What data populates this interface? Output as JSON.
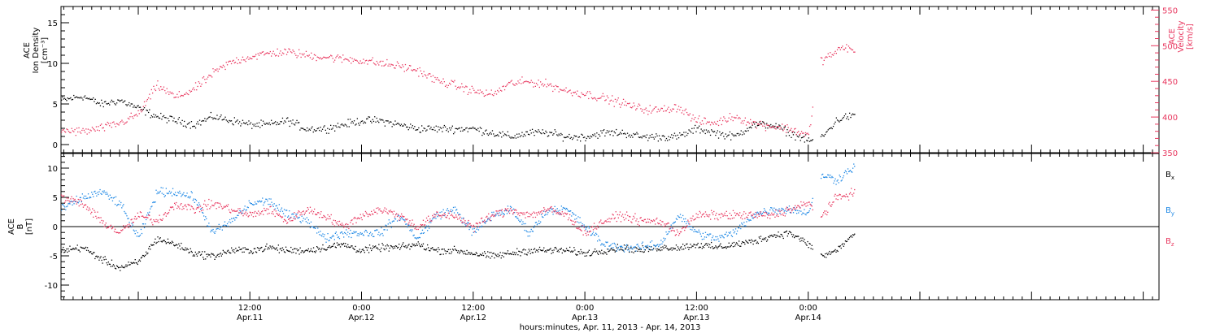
{
  "colors": {
    "axis": "#000000",
    "black_series": "#000000",
    "pink_series": "#e8365e",
    "blue_series": "#1e88e5"
  },
  "x_axis": {
    "title": "hours:minutes, Apr. 11, 2013 - Apr. 14, 2013",
    "range_hours": [
      -8.3,
      109.7
    ],
    "ticks": [
      {
        "hour": 12,
        "line1": "12:00",
        "line2": "Apr.11"
      },
      {
        "hour": 24,
        "line1": "0:00",
        "line2": "Apr.12"
      },
      {
        "hour": 36,
        "line1": "12:00",
        "line2": "Apr.12"
      },
      {
        "hour": 48,
        "line1": "0:00",
        "line2": "Apr.13"
      },
      {
        "hour": 60,
        "line1": "12:00",
        "line2": "Apr.13"
      },
      {
        "hour": 72,
        "line1": "0:00",
        "line2": "Apr.14"
      }
    ],
    "minor_ticks_per_major": 12
  },
  "chart_data": [
    {
      "type": "scatter",
      "panel": "top",
      "left_axis": {
        "label_lines": [
          "ACE",
          "Ion Density",
          "[cm⁻³]"
        ],
        "range": [
          -1,
          17
        ],
        "ticks": [
          0,
          5,
          10,
          15
        ]
      },
      "right_axis": {
        "label_lines": [
          "ACE",
          "Velocity",
          "[km/s]"
        ],
        "range": [
          350,
          555
        ],
        "ticks": [
          350,
          400,
          450,
          500,
          550
        ]
      },
      "series": [
        {
          "color_key": "black_series",
          "axis": "left",
          "data_gap_hours": [
            [
              72.5,
              73.3
            ]
          ],
          "points": [
            [
              -8.3,
              5.5
            ],
            [
              -6,
              6
            ],
            [
              -4,
              5
            ],
            [
              -2,
              5.5
            ],
            [
              0,
              4.5
            ],
            [
              2,
              3.5
            ],
            [
              4,
              3
            ],
            [
              6,
              2.5
            ],
            [
              8,
              3.5
            ],
            [
              10,
              3
            ],
            [
              12,
              2.5
            ],
            [
              14,
              2.5
            ],
            [
              16,
              3
            ],
            [
              18,
              2
            ],
            [
              20,
              2
            ],
            [
              22,
              2.5
            ],
            [
              24,
              3
            ],
            [
              26,
              3
            ],
            [
              28,
              2.5
            ],
            [
              30,
              2
            ],
            [
              32,
              2
            ],
            [
              34,
              2
            ],
            [
              36,
              2
            ],
            [
              38,
              1.5
            ],
            [
              40,
              1
            ],
            [
              42,
              1.5
            ],
            [
              44,
              1.5
            ],
            [
              46,
              1
            ],
            [
              48,
              1
            ],
            [
              50,
              1.5
            ],
            [
              52,
              1.5
            ],
            [
              54,
              1
            ],
            [
              56,
              1
            ],
            [
              58,
              1
            ],
            [
              60,
              2
            ],
            [
              62,
              1.5
            ],
            [
              64,
              1
            ],
            [
              66,
              2.5
            ],
            [
              68,
              2.5
            ],
            [
              70,
              1.5
            ],
            [
              72,
              0.5
            ],
            [
              73.5,
              1
            ],
            [
              75,
              3
            ],
            [
              76,
              3.5
            ],
            [
              77,
              3.5
            ]
          ]
        },
        {
          "color_key": "pink_series",
          "axis": "right",
          "data_gap_hours": [
            [
              72.5,
              73.3
            ]
          ],
          "points": [
            [
              -8.3,
              382
            ],
            [
              -6,
              380
            ],
            [
              -4,
              385
            ],
            [
              -2,
              392
            ],
            [
              0,
              405
            ],
            [
              2,
              445
            ],
            [
              4,
              428
            ],
            [
              6,
              440
            ],
            [
              8,
              462
            ],
            [
              10,
              478
            ],
            [
              12,
              485
            ],
            [
              14,
              490
            ],
            [
              16,
              492
            ],
            [
              18,
              487
            ],
            [
              20,
              485
            ],
            [
              22,
              482
            ],
            [
              24,
              480
            ],
            [
              26,
              476
            ],
            [
              28,
              472
            ],
            [
              30,
              466
            ],
            [
              32,
              452
            ],
            [
              34,
              445
            ],
            [
              36,
              437
            ],
            [
              38,
              432
            ],
            [
              40,
              448
            ],
            [
              42,
              450
            ],
            [
              44,
              446
            ],
            [
              46,
              437
            ],
            [
              48,
              433
            ],
            [
              50,
              427
            ],
            [
              52,
              420
            ],
            [
              54,
              412
            ],
            [
              56,
              410
            ],
            [
              58,
              415
            ],
            [
              60,
              395
            ],
            [
              62,
              392
            ],
            [
              64,
              402
            ],
            [
              66,
              392
            ],
            [
              68,
              388
            ],
            [
              70,
              384
            ],
            [
              72,
              375
            ],
            [
              73.3,
              480
            ],
            [
              75,
              492
            ],
            [
              76,
              500
            ],
            [
              77,
              490
            ]
          ]
        }
      ]
    },
    {
      "type": "scatter",
      "panel": "bottom",
      "left_axis": {
        "label_lines": [
          "ACE",
          "B",
          "[nT]"
        ],
        "range": [
          -12.5,
          12.5
        ],
        "ticks": [
          -10,
          -5,
          0,
          5,
          10
        ]
      },
      "legend": [
        {
          "label": "B",
          "sub": "x",
          "color_key": "black_series"
        },
        {
          "label": "B",
          "sub": "y",
          "color_key": "blue_series"
        },
        {
          "label": "B",
          "sub": "z",
          "color_key": "pink_series"
        }
      ],
      "series": [
        {
          "name": "Bx",
          "color_key": "black_series",
          "data_gap_hours": [
            [
              72.5,
              73.3
            ]
          ],
          "points": [
            [
              -8.3,
              -4
            ],
            [
              -6,
              -3.5
            ],
            [
              -4,
              -5.5
            ],
            [
              -2,
              -7
            ],
            [
              0,
              -6
            ],
            [
              2,
              -2
            ],
            [
              4,
              -3
            ],
            [
              6,
              -4.5
            ],
            [
              8,
              -5
            ],
            [
              10,
              -4
            ],
            [
              12,
              -4
            ],
            [
              14,
              -3.5
            ],
            [
              16,
              -4
            ],
            [
              18,
              -4
            ],
            [
              20,
              -3.5
            ],
            [
              22,
              -3
            ],
            [
              24,
              -4
            ],
            [
              26,
              -3.5
            ],
            [
              28,
              -3.5
            ],
            [
              30,
              -3
            ],
            [
              32,
              -4
            ],
            [
              34,
              -4
            ],
            [
              36,
              -4.5
            ],
            [
              38,
              -5
            ],
            [
              40,
              -4.5
            ],
            [
              42,
              -4
            ],
            [
              44,
              -4
            ],
            [
              46,
              -4
            ],
            [
              48,
              -4.5
            ],
            [
              50,
              -4
            ],
            [
              52,
              -3.5
            ],
            [
              54,
              -4
            ],
            [
              56,
              -3.5
            ],
            [
              58,
              -3.5
            ],
            [
              60,
              -3
            ],
            [
              62,
              -3.5
            ],
            [
              64,
              -3
            ],
            [
              66,
              -2.5
            ],
            [
              68,
              -1.5
            ],
            [
              70,
              -1
            ],
            [
              72,
              -3
            ],
            [
              73.5,
              -5
            ],
            [
              75,
              -4
            ],
            [
              77,
              -1
            ]
          ]
        },
        {
          "name": "By",
          "color_key": "blue_series",
          "data_gap_hours": [
            [
              72.5,
              73.3
            ]
          ],
          "points": [
            [
              -8.3,
              3
            ],
            [
              -6,
              5
            ],
            [
              -4,
              6
            ],
            [
              -2,
              4
            ],
            [
              0,
              -2
            ],
            [
              2,
              6
            ],
            [
              4,
              6
            ],
            [
              6,
              5
            ],
            [
              8,
              -1
            ],
            [
              10,
              1
            ],
            [
              12,
              4
            ],
            [
              14,
              4.5
            ],
            [
              16,
              2
            ],
            [
              18,
              1.5
            ],
            [
              20,
              -2
            ],
            [
              22,
              -1
            ],
            [
              24,
              -1
            ],
            [
              26,
              -1
            ],
            [
              28,
              2
            ],
            [
              30,
              -2
            ],
            [
              32,
              2
            ],
            [
              34,
              3
            ],
            [
              36,
              -1
            ],
            [
              38,
              2
            ],
            [
              40,
              3
            ],
            [
              42,
              -1
            ],
            [
              44,
              3
            ],
            [
              46,
              3
            ],
            [
              48,
              0
            ],
            [
              50,
              -3
            ],
            [
              52,
              -3.5
            ],
            [
              54,
              -3.5
            ],
            [
              56,
              -3
            ],
            [
              58,
              2
            ],
            [
              60,
              -1
            ],
            [
              62,
              -2
            ],
            [
              64,
              -1
            ],
            [
              66,
              2
            ],
            [
              68,
              3
            ],
            [
              70,
              3
            ],
            [
              72,
              2.5
            ],
            [
              73.5,
              9
            ],
            [
              75,
              8
            ],
            [
              77,
              10.5
            ]
          ]
        },
        {
          "name": "Bz",
          "color_key": "pink_series",
          "data_gap_hours": [
            [
              72.5,
              73.3
            ]
          ],
          "points": [
            [
              -8.3,
              5
            ],
            [
              -6,
              4
            ],
            [
              -4,
              1
            ],
            [
              -2,
              -1
            ],
            [
              0,
              2
            ],
            [
              2,
              1
            ],
            [
              4,
              4
            ],
            [
              6,
              3
            ],
            [
              8,
              4
            ],
            [
              10,
              3
            ],
            [
              12,
              2
            ],
            [
              14,
              3
            ],
            [
              16,
              1
            ],
            [
              18,
              3
            ],
            [
              20,
              2
            ],
            [
              22,
              0
            ],
            [
              24,
              2
            ],
            [
              26,
              3
            ],
            [
              28,
              2
            ],
            [
              30,
              0
            ],
            [
              32,
              2
            ],
            [
              34,
              2
            ],
            [
              36,
              0
            ],
            [
              38,
              2
            ],
            [
              40,
              3
            ],
            [
              42,
              2
            ],
            [
              44,
              3
            ],
            [
              46,
              2
            ],
            [
              48,
              -1
            ],
            [
              50,
              1
            ],
            [
              52,
              2
            ],
            [
              54,
              1
            ],
            [
              56,
              1
            ],
            [
              58,
              -1
            ],
            [
              60,
              2
            ],
            [
              62,
              2
            ],
            [
              64,
              2
            ],
            [
              66,
              2
            ],
            [
              68,
              2
            ],
            [
              70,
              3
            ],
            [
              72,
              4
            ],
            [
              73.5,
              2
            ],
            [
              75,
              5
            ],
            [
              77,
              6
            ]
          ]
        }
      ]
    }
  ]
}
